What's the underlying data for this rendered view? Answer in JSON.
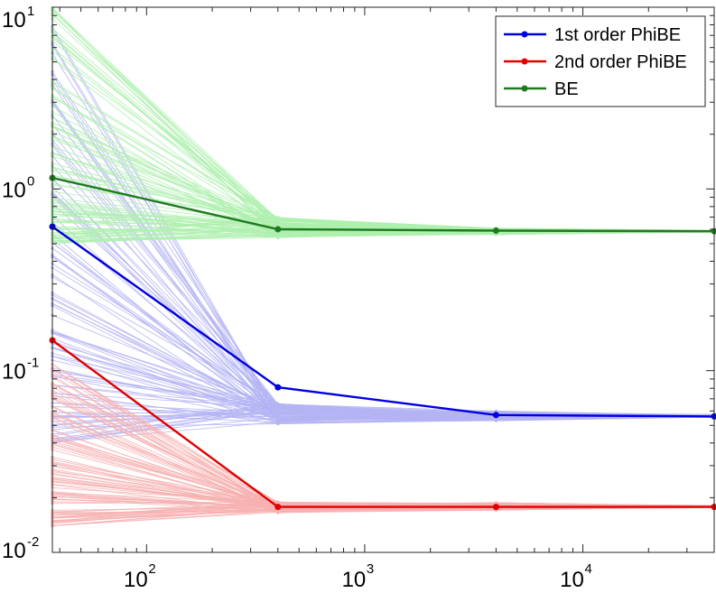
{
  "chart_data": {
    "type": "line",
    "title": "",
    "xlabel": "",
    "ylabel": "",
    "xscale": "log",
    "yscale": "log",
    "xlim": [
      37,
      40000
    ],
    "ylim": [
      0.01,
      10
    ],
    "grid": false,
    "legend_position": "top-right",
    "x": [
      37,
      400,
      4000,
      40000
    ],
    "x_ticks": [
      {
        "base": "10",
        "exp": "2",
        "value": 100
      },
      {
        "base": "10",
        "exp": "3",
        "value": 1000
      },
      {
        "base": "10",
        "exp": "4",
        "value": 10000
      }
    ],
    "y_ticks": [
      {
        "base": "10",
        "exp": "-2",
        "value": 0.01
      },
      {
        "base": "10",
        "exp": "-1",
        "value": 0.1
      },
      {
        "base": "10",
        "exp": "0",
        "value": 1
      },
      {
        "base": "10",
        "exp": "1",
        "value": 10
      }
    ],
    "series": [
      {
        "name": "1st order PhiBE",
        "color": "#0000e0",
        "values": [
          0.62,
          0.081,
          0.057,
          0.056
        ]
      },
      {
        "name": "2nd order PhiBE",
        "color": "#e00000",
        "values": [
          0.147,
          0.0178,
          0.0178,
          0.0178
        ]
      },
      {
        "name": "BE",
        "color": "#1f7a1f",
        "values": [
          1.15,
          0.6,
          0.59,
          0.585
        ]
      }
    ],
    "trial_bands": [
      {
        "color": "#b4b4f5",
        "count": 100,
        "start_range": [
          0.04,
          9.0
        ],
        "end_range": [
          0.051,
          0.066
        ],
        "final_range": [
          0.053,
          0.06
        ]
      },
      {
        "color": "#f7b2b2",
        "count": 100,
        "start_range": [
          0.014,
          0.11
        ],
        "end_range": [
          0.0165,
          0.019
        ],
        "final_range": [
          0.017,
          0.0188
        ]
      },
      {
        "color": "#aef0ae",
        "count": 100,
        "start_range": [
          0.5,
          10.0
        ],
        "end_range": [
          0.54,
          0.7
        ],
        "final_range": [
          0.56,
          0.61
        ]
      }
    ]
  }
}
